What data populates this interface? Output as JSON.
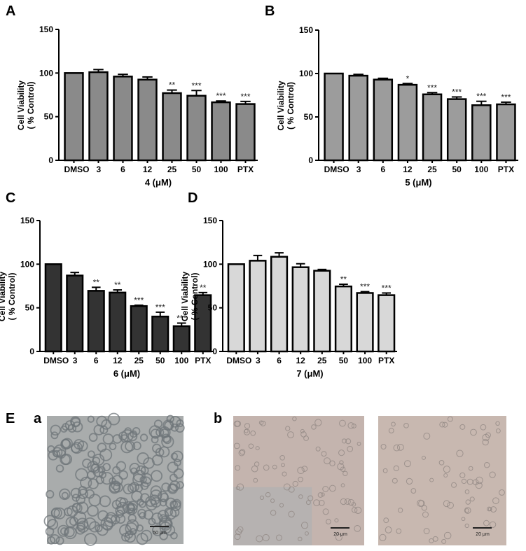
{
  "chart_data": [
    {
      "panel": "A",
      "type": "bar",
      "categories": [
        "DMSO",
        "3",
        "6",
        "12",
        "25",
        "50",
        "100",
        "PTX"
      ],
      "values": [
        100,
        101,
        96,
        92.5,
        77,
        74,
        66.5,
        64.5
      ],
      "errors": [
        0,
        3,
        2.5,
        3,
        3.5,
        6,
        1.5,
        3
      ],
      "significance": [
        "",
        "",
        "",
        "",
        "**",
        "***",
        "***",
        "***"
      ],
      "xlabel": "4 (μM)",
      "ylabel": [
        "Cell Viability",
        "( % Control)"
      ],
      "ylim": [
        0,
        150
      ],
      "yticks": [
        0,
        50,
        100,
        150
      ],
      "bar_color": "#8a8a8a",
      "grid": false
    },
    {
      "panel": "B",
      "type": "bar",
      "categories": [
        "DMSO",
        "3",
        "6",
        "12",
        "25",
        "50",
        "100",
        "PTX"
      ],
      "values": [
        100,
        97.5,
        93,
        87,
        76,
        70.5,
        63.5,
        64.5
      ],
      "errors": [
        0,
        1.5,
        1.5,
        1.5,
        2,
        2.5,
        4.5,
        2.5
      ],
      "significance": [
        "",
        "",
        "",
        "*",
        "***",
        "***",
        "***",
        "***"
      ],
      "xlabel": "5 (μM)",
      "ylabel": [
        "Cell Viability",
        "( % Control)"
      ],
      "ylim": [
        0,
        150
      ],
      "yticks": [
        0,
        50,
        100,
        150
      ],
      "bar_color": "#9c9c9c",
      "grid": false
    },
    {
      "panel": "C",
      "type": "bar",
      "categories": [
        "DMSO",
        "3",
        "6",
        "12",
        "25",
        "50",
        "100",
        "PTX"
      ],
      "values": [
        100,
        87,
        69.5,
        67.5,
        52,
        40,
        29,
        64.5
      ],
      "errors": [
        0,
        3.5,
        4,
        3,
        1,
        5,
        3.5,
        3
      ],
      "significance": [
        "",
        "",
        "**",
        "**",
        "***",
        "***",
        "***",
        "**"
      ],
      "xlabel": "6 (μM)",
      "ylabel": [
        "Cell Viability",
        "( % Control)"
      ],
      "ylim": [
        0,
        150
      ],
      "yticks": [
        0,
        50,
        100,
        150
      ],
      "bar_color": "#333333",
      "grid": false
    },
    {
      "panel": "D",
      "type": "bar",
      "categories": [
        "DMSO",
        "3",
        "6",
        "12",
        "25",
        "50",
        "100",
        "PTX"
      ],
      "values": [
        100,
        104,
        108.5,
        96.5,
        92.5,
        74.5,
        67,
        64.5
      ],
      "errors": [
        0,
        6,
        4.5,
        4,
        1.5,
        2.5,
        1.5,
        2.5
      ],
      "significance": [
        "",
        "",
        "",
        "",
        "",
        "**",
        "***",
        "***"
      ],
      "xlabel": "7 (μM)",
      "ylabel": [
        "Cell Viability",
        "( % Control)"
      ],
      "ylim": [
        0,
        150
      ],
      "yticks": [
        0,
        50,
        100,
        150
      ],
      "bar_color": "#d8d8d8",
      "grid": false
    }
  ],
  "panel_e": {
    "label": "E",
    "sub_a": "a",
    "sub_b": "b",
    "images": [
      {
        "scale_bar": "50 μm",
        "tint": "#a9acac"
      },
      {
        "scale_bar": "20 μm",
        "tint": "#c4b4ae"
      },
      {
        "scale_bar": "20 μm",
        "tint": "#c8b8b0"
      }
    ]
  }
}
